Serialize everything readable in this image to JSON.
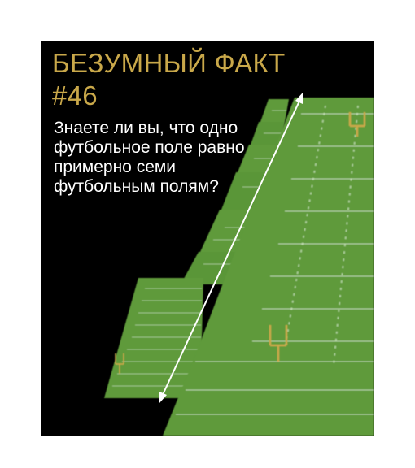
{
  "title_line1": "БЕЗУМНЫЙ ФАКТ",
  "title_line2": "#46",
  "body_lines": [
    "Знаете ли вы, что одно",
    "футбольное поле равно",
    "примерно семи",
    "футбольным полям?"
  ],
  "colors": {
    "background": "#000000",
    "title": "#c9a84a",
    "text": "#ffffff",
    "field": "#5e9a3b",
    "goalpost": "#c9a84a"
  }
}
